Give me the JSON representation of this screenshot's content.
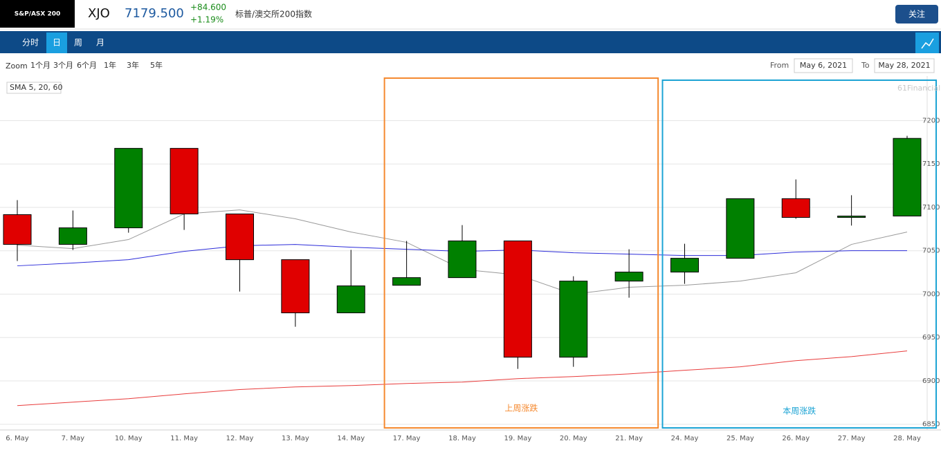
{
  "header": {
    "index_name": "S&P/ASX 200",
    "symbol": "XJO",
    "price": "7179.500",
    "change": "+84.600",
    "change_pct": "+1.19%",
    "full_name": "标普/澳交所200指数",
    "follow": "关注"
  },
  "nav": {
    "tabs": [
      "分时",
      "日",
      "周",
      "月"
    ]
  },
  "zoom": {
    "label": "Zoom",
    "options": [
      "1个月",
      "3个月",
      "6个月",
      "1年",
      "3年",
      "5年"
    ]
  },
  "range": {
    "from_label": "From",
    "from": "May 6, 2021",
    "to_label": "To",
    "to": "May 28, 2021"
  },
  "chart_data": {
    "type": "candlestick",
    "indicator_label": "SMA 5, 20, 60",
    "watermark": "61Financial",
    "categories": [
      "6. May",
      "7. May",
      "10. May",
      "11. May",
      "12. May",
      "13. May",
      "14. May",
      "17. May",
      "18. May",
      "19. May",
      "20. May",
      "21. May",
      "24. May",
      "25. May",
      "26. May",
      "27. May",
      "28. May"
    ],
    "open": [
      7091.6,
      7057.3,
      7076.4,
      7168,
      7092.4,
      7039.7,
      6978.4,
      7010.2,
      7019,
      7061.3,
      6927.3,
      7015,
      7025.4,
      7041.3,
      7110,
      7088.4,
      7090
    ],
    "high": [
      7108.3,
      7096.4,
      7168,
      7168,
      7092.4,
      7039.7,
      7051,
      7061.3,
      7079.6,
      7061.3,
      7020.6,
      7051.7,
      7058,
      7110,
      7132.2,
      7114,
      7182.5
    ],
    "low": [
      7038.1,
      7050.9,
      7070.8,
      7074,
      7003,
      6962.4,
      6978.4,
      7010.2,
      7019,
      6913.8,
      6916.2,
      6995.9,
      7011.8,
      7041.3,
      7086.8,
      7079,
      7090
    ],
    "close": [
      7057.3,
      7076.4,
      7168,
      7092.4,
      7039.7,
      6978.4,
      7009.5,
      7019,
      7061.3,
      6927.3,
      7015,
      7025.4,
      7041.3,
      7110,
      7088.4,
      7090,
      7179.5
    ],
    "up_color": "#008000",
    "down_color": "#e00000",
    "lines": [
      {
        "color": "#999999",
        "values": [
          7056.5,
          7052.5,
          7062.9,
          7092.4,
          7097.1,
          7086.8,
          7071.6,
          7059.7,
          7028.6,
          7022.2,
          6999.9,
          7007.9,
          7010.2,
          7015,
          7024.6,
          7057.3,
          7071.6
        ]
      },
      {
        "color": "#2b2bd9",
        "values": [
          7032.6,
          7035.8,
          7039.7,
          7049.3,
          7055.7,
          7057.3,
          7054.1,
          7051.7,
          7049.3,
          7050.9,
          7047.7,
          7046.1,
          7044.5,
          7044.5,
          7048.5,
          7050.1,
          7050.1
        ]
      },
      {
        "color": "#e83a3a",
        "values": [
          6871.5,
          6875.5,
          6879.5,
          6885,
          6890,
          6893,
          6894.6,
          6897,
          6898.6,
          6902.6,
          6905,
          6908,
          6912.2,
          6916.2,
          6923.3,
          6928,
          6934.5
        ]
      }
    ],
    "ylim": [
      6845,
      7245
    ],
    "yticks": [
      6850,
      6900,
      6950,
      7000,
      7050,
      7100,
      7150,
      7200
    ],
    "grid": true,
    "annotations": [
      {
        "text": "上周涨跌",
        "color": "#f5892f",
        "from": 7,
        "to": 11
      },
      {
        "text": "本周涨跌",
        "color": "#1ba3d4",
        "from": 12,
        "to": 16
      }
    ]
  }
}
